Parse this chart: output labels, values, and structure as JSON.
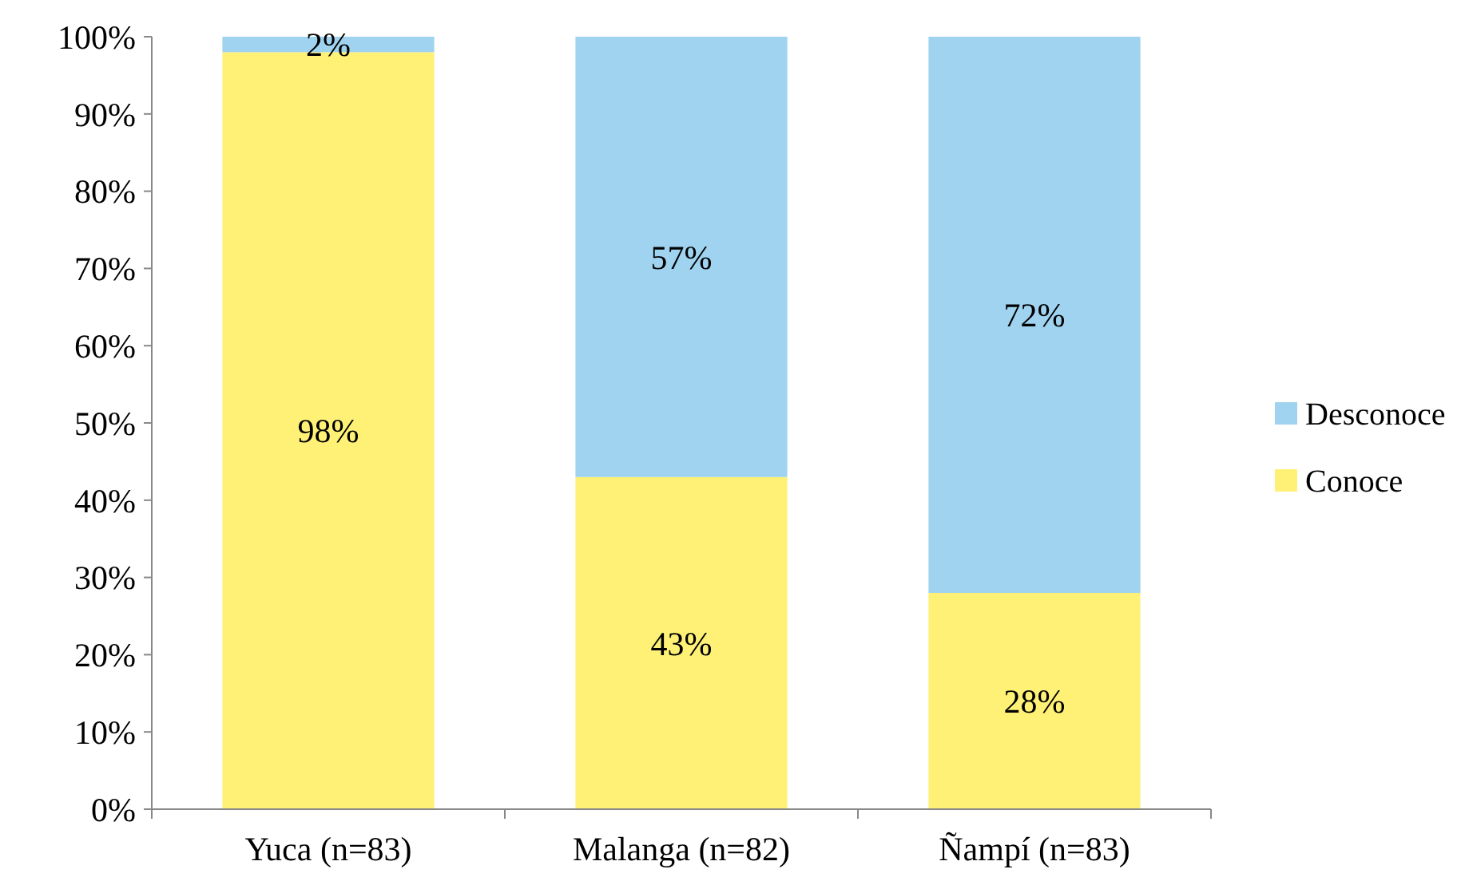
{
  "chart_data": {
    "type": "bar",
    "stacked": true,
    "categories": [
      "Yuca (n=83)",
      "Malanga (n=82)",
      "Ñampí (n=83)"
    ],
    "series": [
      {
        "name": "Conoce",
        "color": "#fff176",
        "values": [
          98,
          43,
          28
        ],
        "value_labels": [
          "98%",
          "43%",
          "28%"
        ]
      },
      {
        "name": "Desconoce",
        "color": "#9fd3f0",
        "values": [
          2,
          57,
          72
        ],
        "value_labels": [
          "2%",
          "57%",
          "72%"
        ]
      }
    ],
    "ylim": [
      0,
      100
    ],
    "yticks": [
      {
        "value": 0,
        "label": "0%"
      },
      {
        "value": 10,
        "label": "10%"
      },
      {
        "value": 20,
        "label": "20%"
      },
      {
        "value": 30,
        "label": "30%"
      },
      {
        "value": 40,
        "label": "40%"
      },
      {
        "value": 50,
        "label": "50%"
      },
      {
        "value": 60,
        "label": "60%"
      },
      {
        "value": 70,
        "label": "70%"
      },
      {
        "value": 80,
        "label": "80%"
      },
      {
        "value": 90,
        "label": "90%"
      },
      {
        "value": 100,
        "label": "100%"
      }
    ],
    "grid": false,
    "legend": "right"
  }
}
